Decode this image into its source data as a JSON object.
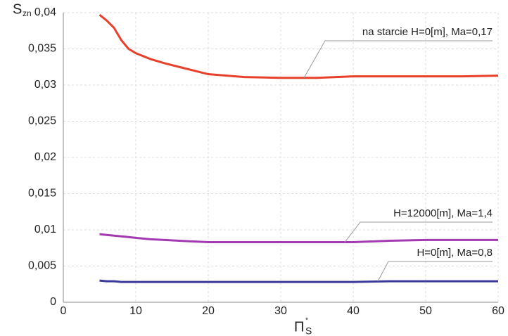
{
  "chart_data": {
    "type": "line",
    "ylabel": "S",
    "ylabel_sub": "zn",
    "xlabel": "Π",
    "xlabel_sup": "*",
    "xlabel_sub": "S",
    "x": [
      5,
      6,
      7,
      8,
      9,
      10,
      12,
      14,
      16,
      20,
      25,
      30,
      35,
      40,
      45,
      50,
      55,
      60
    ],
    "series": [
      {
        "name": "na starcie H=0[m], Ma=0,17",
        "color": "#e8402a",
        "values": [
          0.0397,
          0.0389,
          0.0379,
          0.0362,
          0.035,
          0.0344,
          0.0336,
          0.033,
          0.0325,
          0.0315,
          0.0311,
          0.031,
          0.031,
          0.0312,
          0.0312,
          0.0312,
          0.0312,
          0.0313
        ]
      },
      {
        "name": "H=12000[m], Ma=1,4",
        "color": "#a43ab2",
        "values": [
          0.0094,
          0.0093,
          0.0092,
          0.0091,
          0.009,
          0.0089,
          0.0087,
          0.0086,
          0.0085,
          0.0083,
          0.0083,
          0.0083,
          0.0083,
          0.0083,
          0.0085,
          0.0086,
          0.0086,
          0.0086
        ]
      },
      {
        "name": "H=0[m], Ma=0,8",
        "color": "#3b3a9c",
        "values": [
          0.003,
          0.0029,
          0.0029,
          0.0028,
          0.0028,
          0.0028,
          0.0028,
          0.0028,
          0.0028,
          0.0028,
          0.0028,
          0.0028,
          0.0028,
          0.0028,
          0.0029,
          0.0029,
          0.0029,
          0.0029
        ]
      }
    ],
    "xlim": [
      0,
      60
    ],
    "xticks": [
      0,
      10,
      20,
      30,
      40,
      50,
      60
    ],
    "ylim": [
      0,
      0.04
    ],
    "yticks": [
      0,
      {
        "value": 0.005,
        "label": "0,005"
      },
      {
        "value": 0.01,
        "label": "0,01"
      },
      {
        "value": 0.015,
        "label": "0,015"
      },
      {
        "value": 0.02,
        "label": "0,02"
      },
      {
        "value": 0.025,
        "label": "0,025"
      },
      {
        "value": 0.03,
        "label": "0,03"
      },
      {
        "value": 0.035,
        "label": "0,035"
      },
      {
        "value": 0.04,
        "label": "0,04"
      }
    ],
    "grid": true
  }
}
